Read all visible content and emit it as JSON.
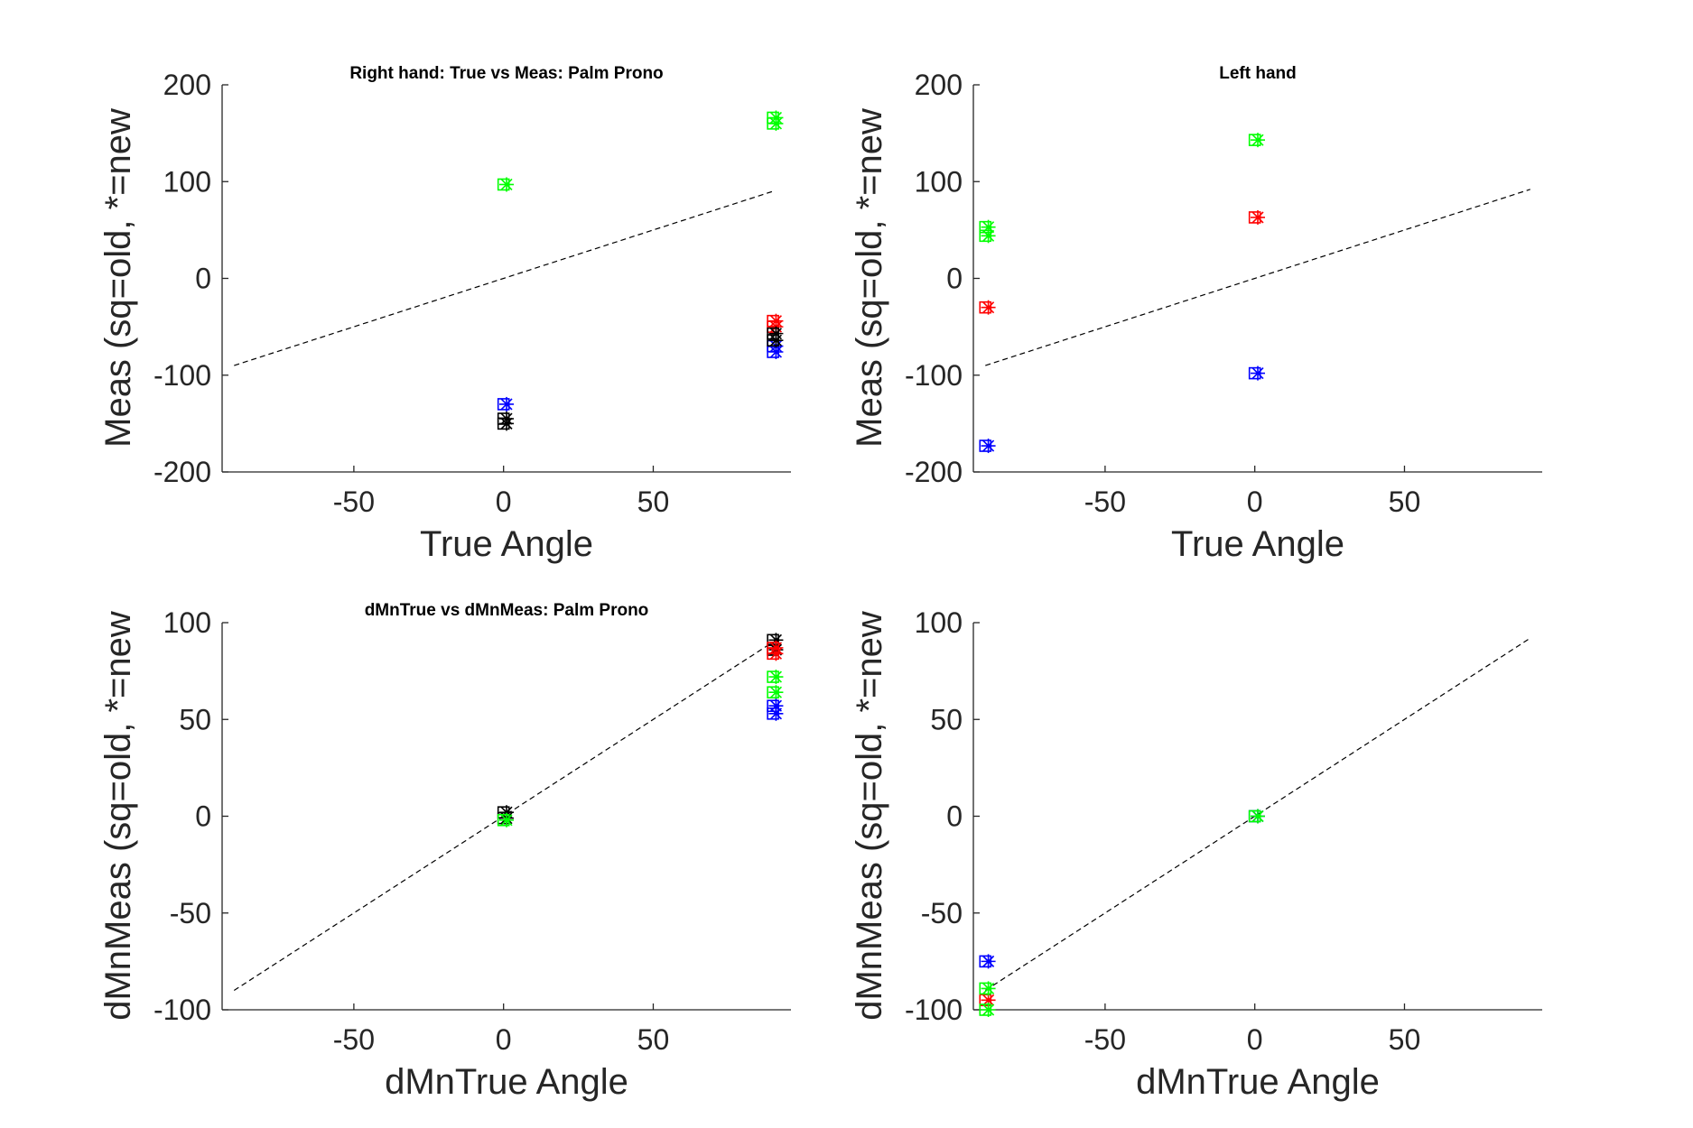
{
  "chart_data": [
    {
      "type": "scatter",
      "title": "Right hand: True vs Meas: Palm Prono",
      "xlabel": "True Angle",
      "ylabel": "Meas (sq=old, *=new",
      "xlim": [
        -94,
        96
      ],
      "ylim": [
        -200,
        200
      ],
      "xticks": [
        -50,
        0,
        50
      ],
      "yticks": [
        -200,
        -100,
        0,
        100,
        200
      ],
      "grid": false,
      "reference_line": {
        "x": [
          -90,
          90
        ],
        "y": [
          -90,
          90
        ]
      },
      "series": [
        {
          "color": "#00ff00",
          "marker": "square",
          "x": [
            0,
            90,
            90
          ],
          "y": [
            97,
            160,
            166
          ]
        },
        {
          "color": "#00ff00",
          "marker": "asterisk",
          "x": [
            1,
            91,
            91
          ],
          "y": [
            97,
            160,
            166
          ]
        },
        {
          "color": "#ff0000",
          "marker": "square",
          "x": [
            90,
            90
          ],
          "y": [
            -44,
            -50
          ]
        },
        {
          "color": "#ff0000",
          "marker": "asterisk",
          "x": [
            91,
            91
          ],
          "y": [
            -44,
            -50
          ]
        },
        {
          "color": "#0000ff",
          "marker": "square",
          "x": [
            0,
            90,
            90
          ],
          "y": [
            -130,
            -70,
            -76
          ]
        },
        {
          "color": "#0000ff",
          "marker": "asterisk",
          "x": [
            1,
            91,
            91
          ],
          "y": [
            -130,
            -70,
            -76
          ]
        },
        {
          "color": "#000000",
          "marker": "square",
          "x": [
            0,
            0,
            90,
            90
          ],
          "y": [
            -145,
            -150,
            -57,
            -64
          ]
        },
        {
          "color": "#000000",
          "marker": "asterisk",
          "x": [
            1,
            1,
            91,
            91
          ],
          "y": [
            -145,
            -150,
            -57,
            -64
          ]
        }
      ]
    },
    {
      "type": "scatter",
      "title": "Left hand",
      "xlabel": "True Angle",
      "ylabel": "Meas (sq=old, *=new",
      "xlim": [
        -94,
        96
      ],
      "ylim": [
        -200,
        200
      ],
      "xticks": [
        -50,
        0,
        50
      ],
      "yticks": [
        -200,
        -100,
        0,
        100,
        200
      ],
      "grid": false,
      "reference_line": {
        "x": [
          -90,
          92
        ],
        "y": [
          -90,
          92
        ]
      },
      "series": [
        {
          "color": "#00ff00",
          "marker": "square",
          "x": [
            -90,
            -90,
            0
          ],
          "y": [
            53,
            44,
            143
          ]
        },
        {
          "color": "#00ff00",
          "marker": "asterisk",
          "x": [
            -89,
            -89,
            1
          ],
          "y": [
            53,
            44,
            143
          ]
        },
        {
          "color": "#ff0000",
          "marker": "square",
          "x": [
            -90,
            0
          ],
          "y": [
            -30,
            63
          ]
        },
        {
          "color": "#ff0000",
          "marker": "asterisk",
          "x": [
            -89,
            1
          ],
          "y": [
            -30,
            63
          ]
        },
        {
          "color": "#0000ff",
          "marker": "square",
          "x": [
            -90,
            0
          ],
          "y": [
            -173,
            -98
          ]
        },
        {
          "color": "#0000ff",
          "marker": "asterisk",
          "x": [
            -89,
            1
          ],
          "y": [
            -173,
            -98
          ]
        }
      ]
    },
    {
      "type": "scatter",
      "title": "dMnTrue vs dMnMeas: Palm Prono",
      "xlabel": "dMnTrue Angle",
      "ylabel": "dMnMeas (sq=old, *=new",
      "xlim": [
        -94,
        96
      ],
      "ylim": [
        -100,
        100
      ],
      "xticks": [
        -50,
        0,
        50
      ],
      "yticks": [
        -100,
        -50,
        0,
        50,
        100
      ],
      "grid": false,
      "reference_line": {
        "x": [
          -90,
          90
        ],
        "y": [
          -90,
          90
        ]
      },
      "series": [
        {
          "color": "#000000",
          "marker": "square",
          "x": [
            0,
            0,
            90,
            90
          ],
          "y": [
            2,
            -1,
            91,
            86
          ]
        },
        {
          "color": "#000000",
          "marker": "asterisk",
          "x": [
            1,
            1,
            91,
            91
          ],
          "y": [
            2,
            -1,
            91,
            86
          ]
        },
        {
          "color": "#ff0000",
          "marker": "square",
          "x": [
            90,
            90
          ],
          "y": [
            87,
            84
          ]
        },
        {
          "color": "#ff0000",
          "marker": "asterisk",
          "x": [
            91,
            91
          ],
          "y": [
            87,
            84
          ]
        },
        {
          "color": "#00ff00",
          "marker": "square",
          "x": [
            0,
            90,
            90
          ],
          "y": [
            -2,
            72,
            64
          ]
        },
        {
          "color": "#00ff00",
          "marker": "asterisk",
          "x": [
            1,
            91,
            91
          ],
          "y": [
            -2,
            72,
            64
          ]
        },
        {
          "color": "#0000ff",
          "marker": "square",
          "x": [
            90,
            90
          ],
          "y": [
            57,
            53
          ]
        },
        {
          "color": "#0000ff",
          "marker": "asterisk",
          "x": [
            91,
            91
          ],
          "y": [
            57,
            53
          ]
        }
      ]
    },
    {
      "type": "scatter",
      "title": "",
      "xlabel": "dMnTrue Angle",
      "ylabel": "dMnMeas (sq=old, *=new",
      "xlim": [
        -94,
        96
      ],
      "ylim": [
        -100,
        100
      ],
      "xticks": [
        -50,
        0,
        50
      ],
      "yticks": [
        -100,
        -50,
        0,
        50,
        100
      ],
      "grid": false,
      "reference_line": {
        "x": [
          -90,
          92
        ],
        "y": [
          -90,
          92
        ]
      },
      "series": [
        {
          "color": "#0000ff",
          "marker": "square",
          "x": [
            -90,
            0
          ],
          "y": [
            -75,
            0
          ]
        },
        {
          "color": "#0000ff",
          "marker": "asterisk",
          "x": [
            -89,
            1
          ],
          "y": [
            -75,
            0
          ]
        },
        {
          "color": "#ff0000",
          "marker": "square",
          "x": [
            -90
          ],
          "y": [
            -95
          ]
        },
        {
          "color": "#ff0000",
          "marker": "asterisk",
          "x": [
            -89
          ],
          "y": [
            -95
          ]
        },
        {
          "color": "#00ff00",
          "marker": "square",
          "x": [
            -90,
            -90,
            0
          ],
          "y": [
            -89,
            -100,
            0
          ]
        },
        {
          "color": "#00ff00",
          "marker": "asterisk",
          "x": [
            -89,
            -89,
            1
          ],
          "y": [
            -89,
            -100,
            0
          ]
        }
      ]
    }
  ]
}
